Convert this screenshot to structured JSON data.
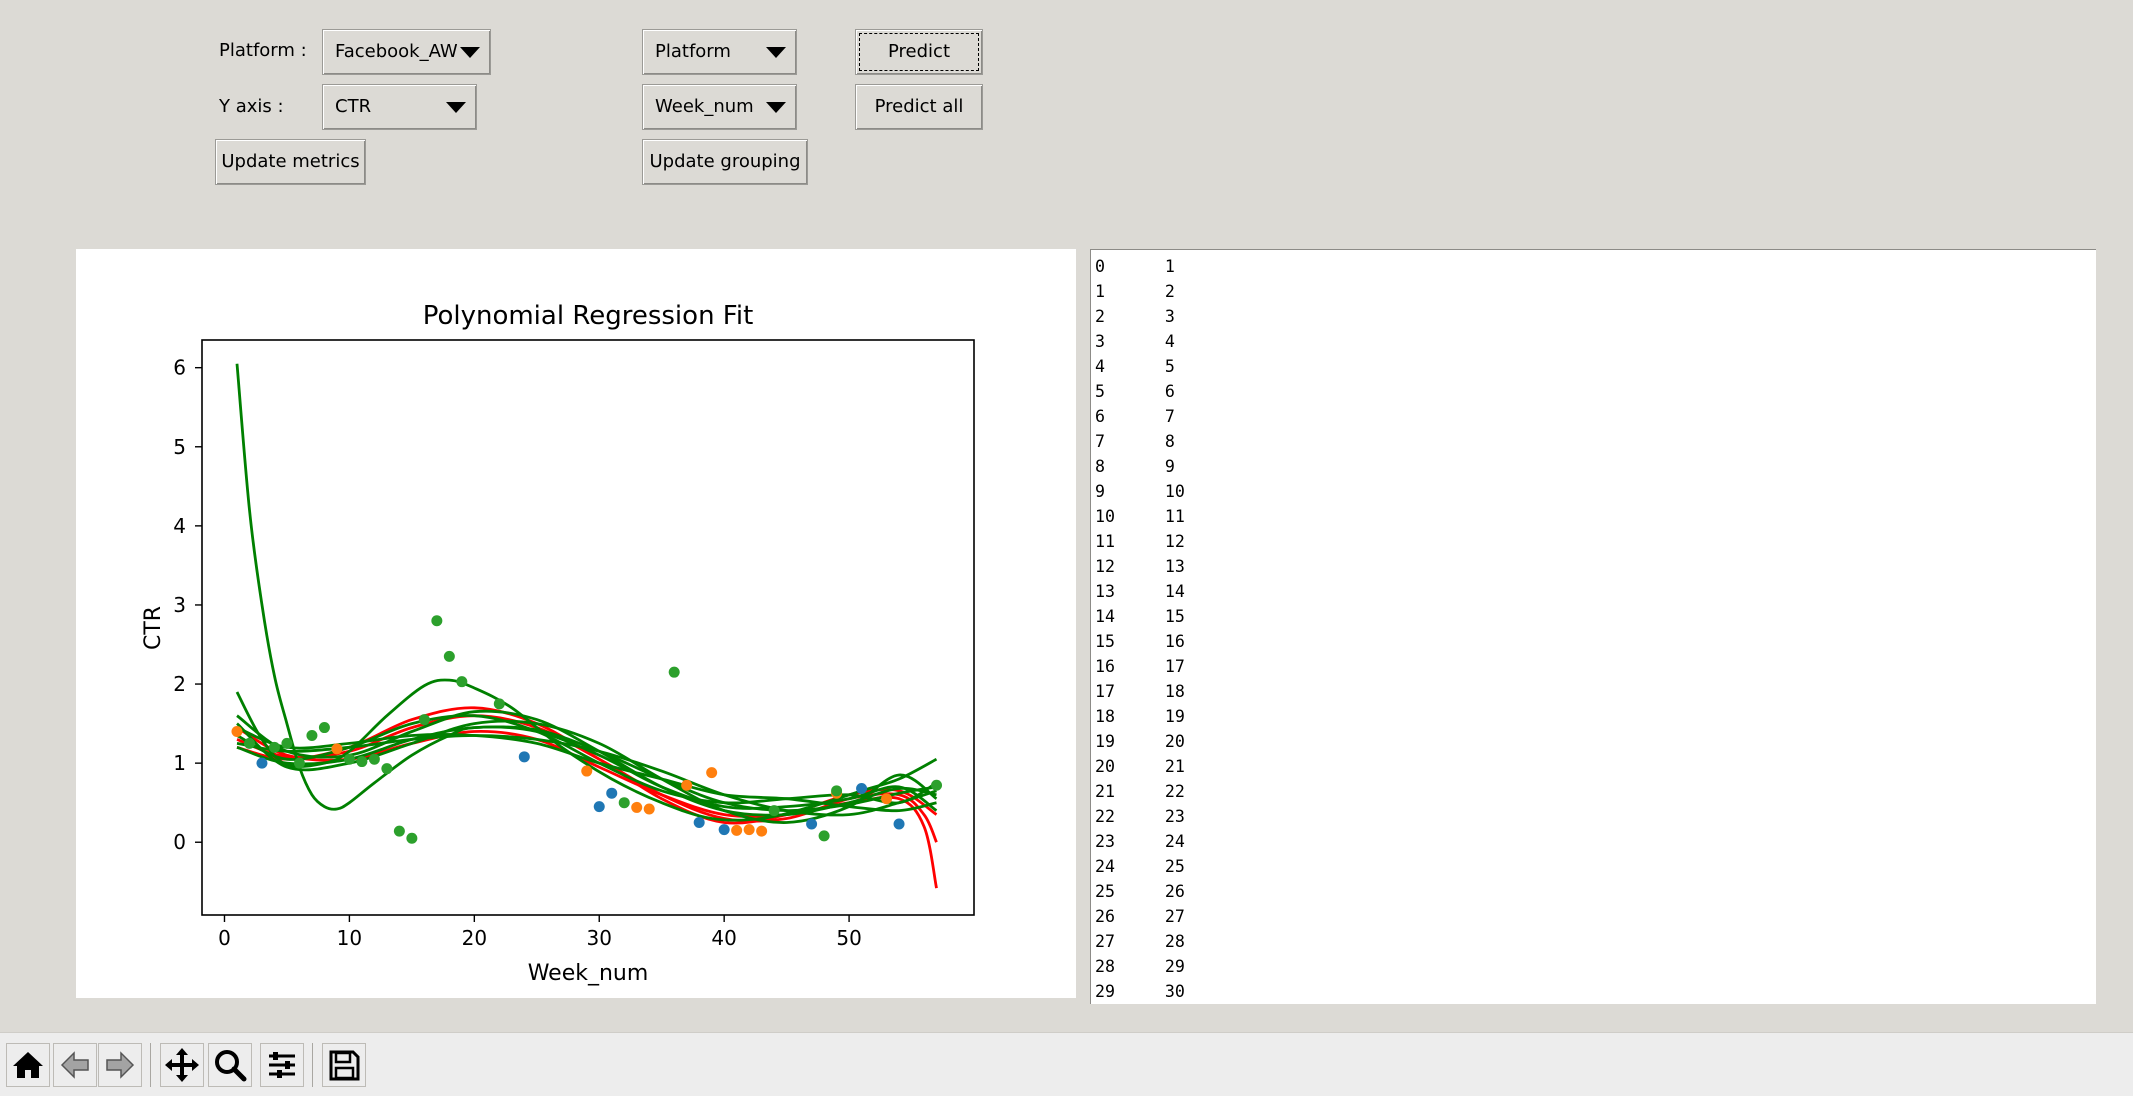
{
  "controls": {
    "platform_label": "Platform :",
    "platform_value": "Facebook_AW",
    "y_axis_label": "Y axis :",
    "y_axis_value": "CTR",
    "update_metrics": "Update metrics",
    "group_value": "Platform",
    "x_value": "Week_num",
    "update_grouping": "Update grouping",
    "predict": "Predict",
    "predict_all": "Predict all"
  },
  "chart_data": {
    "type": "scatter",
    "title": "Polynomial Regression Fit",
    "xlabel": "Week_num",
    "ylabel": "CTR",
    "xlim": [
      -1.8,
      60
    ],
    "ylim": [
      -0.92,
      6.35
    ],
    "xticks": [
      0,
      10,
      20,
      30,
      40,
      50
    ],
    "yticks": [
      0,
      1,
      2,
      3,
      4,
      5,
      6
    ],
    "grid": false,
    "points": [
      {
        "color": "#1f77b4",
        "data": [
          [
            3,
            1.0
          ],
          [
            24,
            1.08
          ],
          [
            30,
            0.45
          ],
          [
            31,
            0.62
          ],
          [
            38,
            0.25
          ],
          [
            40,
            0.16
          ],
          [
            47,
            0.23
          ],
          [
            51,
            0.68
          ],
          [
            54,
            0.23
          ]
        ]
      },
      {
        "color": "#ff7f0e",
        "data": [
          [
            1,
            1.4
          ],
          [
            9,
            1.18
          ],
          [
            29,
            0.9
          ],
          [
            33,
            0.44
          ],
          [
            34,
            0.42
          ],
          [
            37,
            0.72
          ],
          [
            39,
            0.88
          ],
          [
            41,
            0.15
          ],
          [
            42,
            0.16
          ],
          [
            43,
            0.14
          ],
          [
            49,
            0.62
          ],
          [
            53,
            0.55
          ]
        ]
      },
      {
        "color": "#2ca02c",
        "data": [
          [
            2,
            1.25
          ],
          [
            4,
            1.2
          ],
          [
            5,
            1.25
          ],
          [
            6,
            1.0
          ],
          [
            7,
            1.35
          ],
          [
            8,
            1.45
          ],
          [
            10,
            1.05
          ],
          [
            11,
            1.02
          ],
          [
            12,
            1.05
          ],
          [
            13,
            0.93
          ],
          [
            14,
            0.14
          ],
          [
            15,
            0.05
          ],
          [
            16,
            1.55
          ],
          [
            17,
            2.8
          ],
          [
            18,
            2.35
          ],
          [
            19,
            2.03
          ],
          [
            22,
            1.75
          ],
          [
            32,
            0.5
          ],
          [
            36,
            2.15
          ],
          [
            44,
            0.4
          ],
          [
            48,
            0.08
          ],
          [
            49,
            0.65
          ],
          [
            57,
            0.72
          ]
        ]
      }
    ],
    "series": [
      {
        "color": "#ff0000",
        "data": [
          [
            1,
            1.45
          ],
          [
            5,
            1.1
          ],
          [
            10,
            1.05
          ],
          [
            15,
            1.25
          ],
          [
            20,
            1.4
          ],
          [
            25,
            1.3
          ],
          [
            30,
            0.95
          ],
          [
            35,
            0.6
          ],
          [
            40,
            0.35
          ],
          [
            45,
            0.35
          ],
          [
            50,
            0.5
          ],
          [
            54,
            0.55
          ],
          [
            56,
            0.2
          ],
          [
            57,
            -0.58
          ]
        ]
      },
      {
        "color": "#ff0000",
        "data": [
          [
            1,
            1.3
          ],
          [
            5,
            1.08
          ],
          [
            10,
            1.15
          ],
          [
            15,
            1.45
          ],
          [
            20,
            1.6
          ],
          [
            25,
            1.45
          ],
          [
            30,
            1.05
          ],
          [
            35,
            0.6
          ],
          [
            40,
            0.3
          ],
          [
            45,
            0.3
          ],
          [
            50,
            0.55
          ],
          [
            54,
            0.6
          ],
          [
            56,
            0.35
          ],
          [
            57,
            0.0
          ]
        ]
      },
      {
        "color": "#ff0000",
        "data": [
          [
            1,
            1.2
          ],
          [
            5,
            1.05
          ],
          [
            10,
            1.2
          ],
          [
            15,
            1.55
          ],
          [
            20,
            1.7
          ],
          [
            25,
            1.5
          ],
          [
            30,
            1.05
          ],
          [
            35,
            0.55
          ],
          [
            40,
            0.25
          ],
          [
            45,
            0.35
          ],
          [
            50,
            0.6
          ],
          [
            54,
            0.65
          ],
          [
            57,
            0.35
          ]
        ]
      },
      {
        "color": "#008000",
        "data": [
          [
            1,
            6.05
          ],
          [
            2,
            4.2
          ],
          [
            3,
            3.0
          ],
          [
            4,
            2.1
          ],
          [
            5,
            1.5
          ],
          [
            6,
            0.95
          ],
          [
            7,
            0.6
          ],
          [
            8,
            0.45
          ],
          [
            9,
            0.42
          ],
          [
            10,
            0.5
          ],
          [
            12,
            0.75
          ],
          [
            15,
            1.1
          ],
          [
            18,
            1.35
          ],
          [
            20,
            1.45
          ],
          [
            25,
            1.42
          ],
          [
            30,
            1.15
          ],
          [
            35,
            0.8
          ],
          [
            40,
            0.5
          ],
          [
            45,
            0.4
          ],
          [
            50,
            0.48
          ],
          [
            54,
            0.62
          ],
          [
            57,
            0.7
          ]
        ]
      },
      {
        "color": "#008000",
        "data": [
          [
            1,
            1.9
          ],
          [
            3,
            1.3
          ],
          [
            5,
            0.98
          ],
          [
            8,
            1.0
          ],
          [
            10,
            1.15
          ],
          [
            13,
            1.6
          ],
          [
            16,
            1.98
          ],
          [
            18,
            2.05
          ],
          [
            20,
            1.95
          ],
          [
            23,
            1.7
          ],
          [
            27,
            1.2
          ],
          [
            31,
            0.8
          ],
          [
            35,
            0.5
          ],
          [
            39,
            0.3
          ],
          [
            43,
            0.3
          ],
          [
            47,
            0.45
          ],
          [
            51,
            0.65
          ],
          [
            54,
            0.8
          ],
          [
            57,
            1.05
          ]
        ]
      },
      {
        "color": "#008000",
        "data": [
          [
            1,
            1.6
          ],
          [
            5,
            1.15
          ],
          [
            10,
            1.1
          ],
          [
            15,
            1.4
          ],
          [
            20,
            1.65
          ],
          [
            25,
            1.55
          ],
          [
            30,
            1.15
          ],
          [
            35,
            0.7
          ],
          [
            40,
            0.4
          ],
          [
            45,
            0.35
          ],
          [
            50,
            0.5
          ],
          [
            54,
            0.68
          ],
          [
            57,
            0.6
          ]
        ]
      },
      {
        "color": "#008000",
        "data": [
          [
            1,
            1.2
          ],
          [
            5,
            1.0
          ],
          [
            10,
            1.05
          ],
          [
            15,
            1.3
          ],
          [
            20,
            1.45
          ],
          [
            25,
            1.4
          ],
          [
            30,
            1.1
          ],
          [
            35,
            0.7
          ],
          [
            40,
            0.45
          ],
          [
            45,
            0.45
          ],
          [
            50,
            0.55
          ],
          [
            54,
            0.7
          ],
          [
            57,
            0.4
          ]
        ]
      },
      {
        "color": "#008000",
        "data": [
          [
            1,
            1.45
          ],
          [
            5,
            1.2
          ],
          [
            10,
            1.25
          ],
          [
            15,
            1.35
          ],
          [
            20,
            1.35
          ],
          [
            25,
            1.25
          ],
          [
            30,
            1.0
          ],
          [
            35,
            0.8
          ],
          [
            40,
            0.6
          ],
          [
            45,
            0.55
          ],
          [
            50,
            0.45
          ],
          [
            54,
            0.4
          ],
          [
            57,
            0.5
          ]
        ]
      },
      {
        "color": "#008000",
        "data": [
          [
            1,
            1.25
          ],
          [
            5,
            1.15
          ],
          [
            10,
            1.2
          ],
          [
            15,
            1.3
          ],
          [
            20,
            1.35
          ],
          [
            25,
            1.3
          ],
          [
            30,
            1.15
          ],
          [
            35,
            0.9
          ],
          [
            40,
            0.6
          ],
          [
            45,
            0.4
          ],
          [
            50,
            0.35
          ],
          [
            54,
            0.5
          ],
          [
            57,
            0.65
          ]
        ]
      },
      {
        "color": "#008000",
        "data": [
          [
            1,
            1.5
          ],
          [
            5,
            0.95
          ],
          [
            10,
            1.0
          ],
          [
            15,
            1.25
          ],
          [
            20,
            1.5
          ],
          [
            25,
            1.5
          ],
          [
            30,
            1.25
          ],
          [
            35,
            0.8
          ],
          [
            40,
            0.4
          ],
          [
            45,
            0.25
          ],
          [
            50,
            0.45
          ],
          [
            54,
            0.85
          ],
          [
            57,
            0.55
          ]
        ]
      },
      {
        "color": "#008000",
        "data": [
          [
            1,
            1.35
          ],
          [
            5,
            1.05
          ],
          [
            10,
            1.2
          ],
          [
            15,
            1.5
          ],
          [
            20,
            1.6
          ],
          [
            25,
            1.4
          ],
          [
            30,
            1.0
          ],
          [
            35,
            0.65
          ],
          [
            40,
            0.5
          ],
          [
            45,
            0.55
          ],
          [
            50,
            0.6
          ],
          [
            54,
            0.5
          ],
          [
            57,
            0.75
          ]
        ]
      }
    ]
  },
  "text_output": {
    "rows": [
      [
        "0",
        "1"
      ],
      [
        "1",
        "2"
      ],
      [
        "2",
        "3"
      ],
      [
        "3",
        "4"
      ],
      [
        "4",
        "5"
      ],
      [
        "5",
        "6"
      ],
      [
        "6",
        "7"
      ],
      [
        "7",
        "8"
      ],
      [
        "8",
        "9"
      ],
      [
        "9",
        "10"
      ],
      [
        "10",
        "11"
      ],
      [
        "11",
        "12"
      ],
      [
        "12",
        "13"
      ],
      [
        "13",
        "14"
      ],
      [
        "14",
        "15"
      ],
      [
        "15",
        "16"
      ],
      [
        "16",
        "17"
      ],
      [
        "17",
        "18"
      ],
      [
        "18",
        "19"
      ],
      [
        "19",
        "20"
      ],
      [
        "20",
        "21"
      ],
      [
        "21",
        "22"
      ],
      [
        "22",
        "23"
      ],
      [
        "23",
        "24"
      ],
      [
        "24",
        "25"
      ],
      [
        "25",
        "26"
      ],
      [
        "26",
        "27"
      ],
      [
        "27",
        "28"
      ],
      [
        "28",
        "29"
      ],
      [
        "29",
        "30"
      ]
    ]
  },
  "toolbar": {
    "buttons": [
      "home-icon",
      "back-arrow-icon",
      "forward-arrow-icon",
      "pan-move-icon",
      "zoom-magnifier-icon",
      "configure-subplots-icon",
      "save-floppy-icon"
    ]
  }
}
